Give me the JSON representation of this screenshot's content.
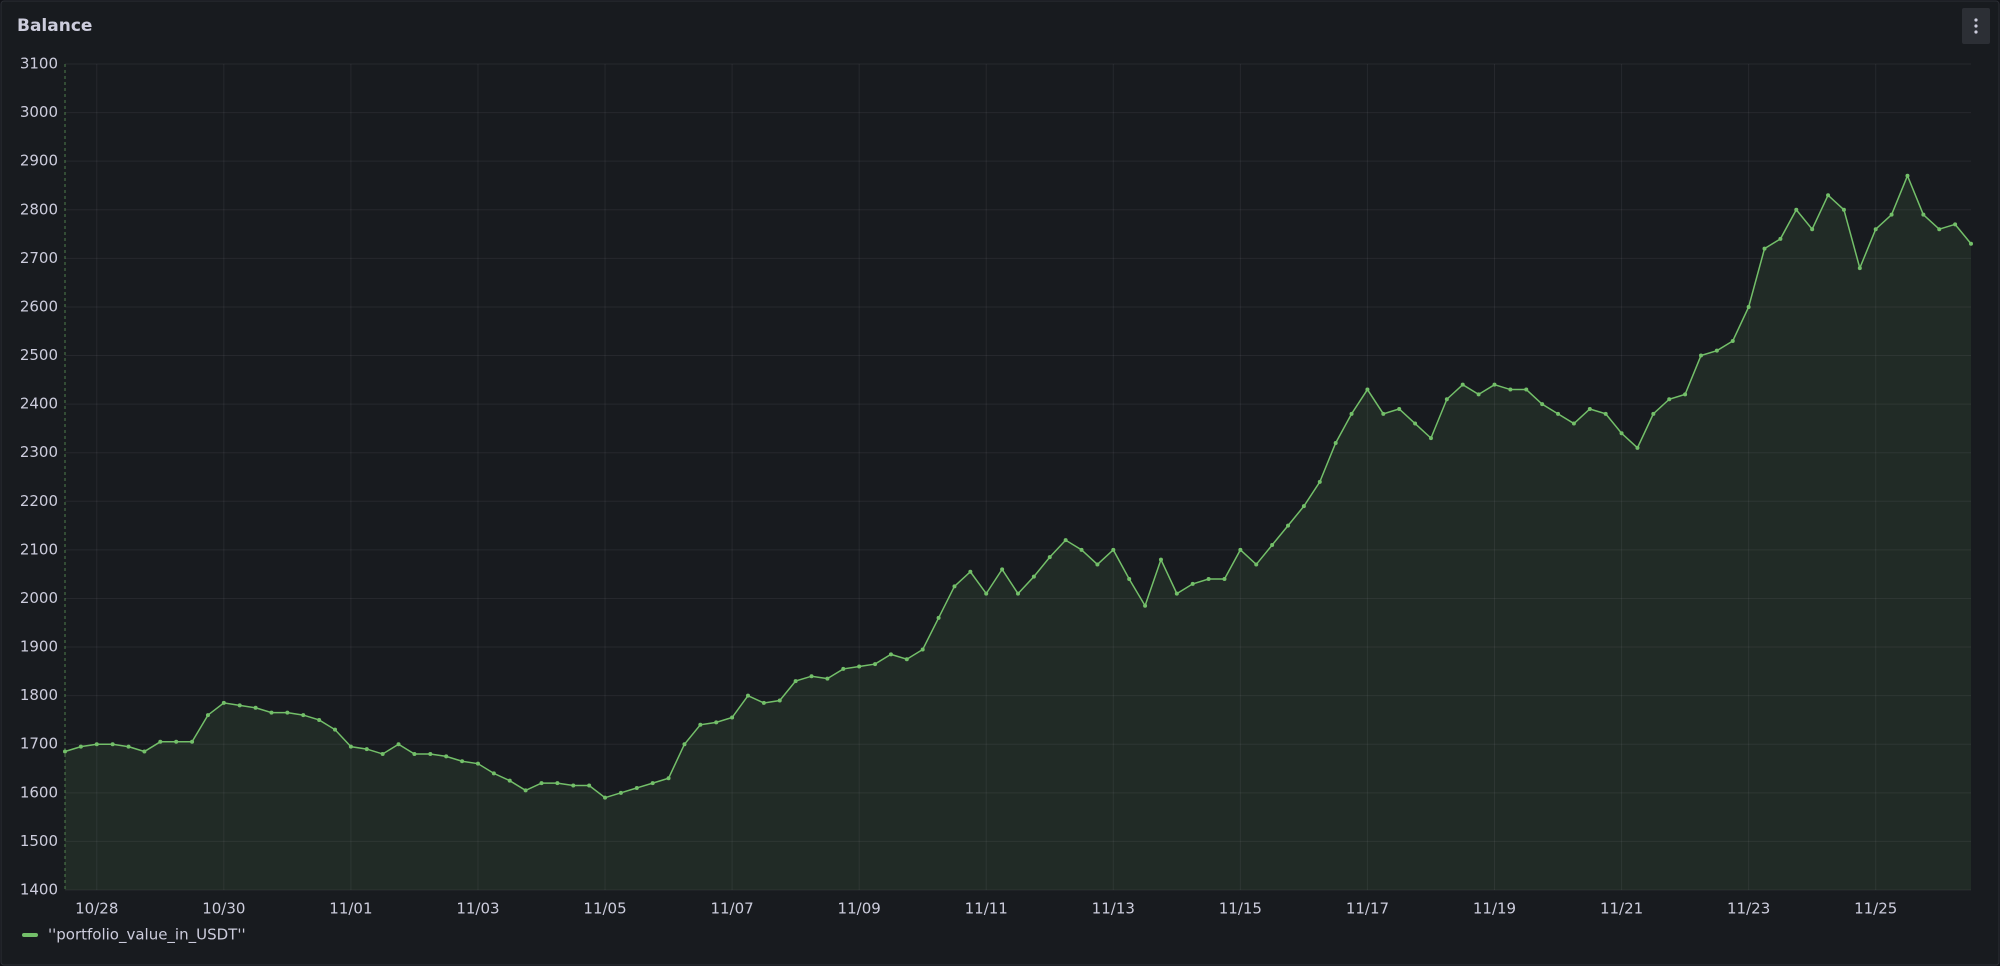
{
  "chart_data": {
    "type": "line",
    "title": "Balance",
    "categories": [
      null,
      null,
      "10/28",
      null,
      null,
      null,
      null,
      null,
      null,
      null,
      "10/30",
      null,
      null,
      null,
      null,
      null,
      null,
      null,
      "11/01",
      null,
      null,
      null,
      null,
      null,
      null,
      null,
      "11/03",
      null,
      null,
      null,
      null,
      null,
      null,
      null,
      "11/05",
      null,
      null,
      null,
      null,
      null,
      null,
      null,
      "11/07",
      null,
      null,
      null,
      null,
      null,
      null,
      null,
      "11/09",
      null,
      null,
      null,
      null,
      null,
      null,
      null,
      "11/11",
      null,
      null,
      null,
      null,
      null,
      null,
      null,
      "11/13",
      null,
      null,
      null,
      null,
      null,
      null,
      null,
      "11/15",
      null,
      null,
      null,
      null,
      null,
      null,
      null,
      "11/17",
      null,
      null,
      null,
      null,
      null,
      null,
      null,
      "11/19",
      null,
      null,
      null,
      null,
      null,
      null,
      null,
      "11/21",
      null,
      null,
      null,
      null,
      null,
      null,
      null,
      "11/23",
      null,
      null,
      null,
      null,
      null,
      null,
      null,
      "11/25",
      null,
      null,
      null,
      null,
      null,
      null
    ],
    "series": [
      {
        "name": "''portfolio_value_in_USDT''",
        "color": "#73bf69",
        "values": [
          1685,
          1695,
          1700,
          1700,
          1695,
          1685,
          1705,
          1705,
          1705,
          1760,
          1785,
          1780,
          1775,
          1765,
          1765,
          1760,
          1750,
          1730,
          1695,
          1690,
          1680,
          1700,
          1680,
          1680,
          1675,
          1665,
          1660,
          1640,
          1625,
          1605,
          1620,
          1620,
          1615,
          1615,
          1590,
          1600,
          1610,
          1620,
          1630,
          1700,
          1740,
          1745,
          1755,
          1800,
          1785,
          1790,
          1830,
          1840,
          1835,
          1855,
          1860,
          1865,
          1885,
          1875,
          1895,
          1960,
          2025,
          2055,
          2010,
          2060,
          2010,
          2045,
          2085,
          2120,
          2100,
          2070,
          2100,
          2040,
          1985,
          2080,
          2010,
          2030,
          2040,
          2040,
          2100,
          2070,
          2110,
          2150,
          2190,
          2240,
          2320,
          2380,
          2430,
          2380,
          2390,
          2360,
          2330,
          2410,
          2440,
          2420,
          2440,
          2430,
          2430,
          2400,
          2380,
          2360,
          2390,
          2380,
          2340,
          2310,
          2380,
          2410,
          2420,
          2500,
          2510,
          2530,
          2600,
          2720,
          2740,
          2800,
          2760,
          2830,
          2800,
          2680,
          2760,
          2790,
          2870,
          2790,
          2760,
          2770,
          2730
        ]
      }
    ],
    "ylim": [
      1400,
      3100
    ],
    "yticks": [
      1400,
      1500,
      1600,
      1700,
      1800,
      1900,
      2000,
      2100,
      2200,
      2300,
      2400,
      2500,
      2600,
      2700,
      2800,
      2900,
      3000,
      3100
    ],
    "grid": true
  }
}
